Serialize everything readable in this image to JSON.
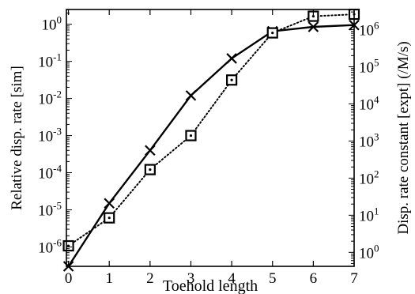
{
  "chart_data": {
    "type": "line",
    "xlabel": "Toehold length",
    "ylabel_left": "Relative disp. rate [sim]",
    "ylabel_right": "Disp. rate constant [expt] (/M/s)",
    "x_ticks": [
      "0",
      "1",
      "2",
      "3",
      "4",
      "5",
      "6",
      "7"
    ],
    "xlim": [
      -0.05,
      7
    ],
    "left_axis": {
      "scale": "log",
      "ylim": [
        3e-07,
        2.5
      ],
      "tick_exponents": [
        "0",
        "-1",
        "-2",
        "-3",
        "-4",
        "-5",
        "-6"
      ]
    },
    "right_axis": {
      "scale": "log",
      "ylim": [
        0.42,
        3500000.0
      ],
      "tick_exponents": [
        "6",
        "5",
        "4",
        "3",
        "2",
        "1",
        "0"
      ]
    },
    "tick_base": "10",
    "grid": false,
    "series": [
      {
        "axis": "left",
        "marker": "x",
        "line": "solid",
        "x": [
          0,
          1,
          2,
          3,
          4,
          5,
          6,
          7
        ],
        "y": [
          3e-07,
          1.5e-05,
          0.0004,
          0.012,
          0.12,
          0.65,
          0.85,
          0.95
        ]
      },
      {
        "axis": "right",
        "marker": "square-dot",
        "line": "dotted",
        "x": [
          0,
          1,
          2,
          3,
          4,
          5,
          6,
          7
        ],
        "y": [
          1.5,
          8.5,
          170,
          1400,
          44000,
          820000,
          2300000,
          2600000
        ]
      }
    ]
  }
}
